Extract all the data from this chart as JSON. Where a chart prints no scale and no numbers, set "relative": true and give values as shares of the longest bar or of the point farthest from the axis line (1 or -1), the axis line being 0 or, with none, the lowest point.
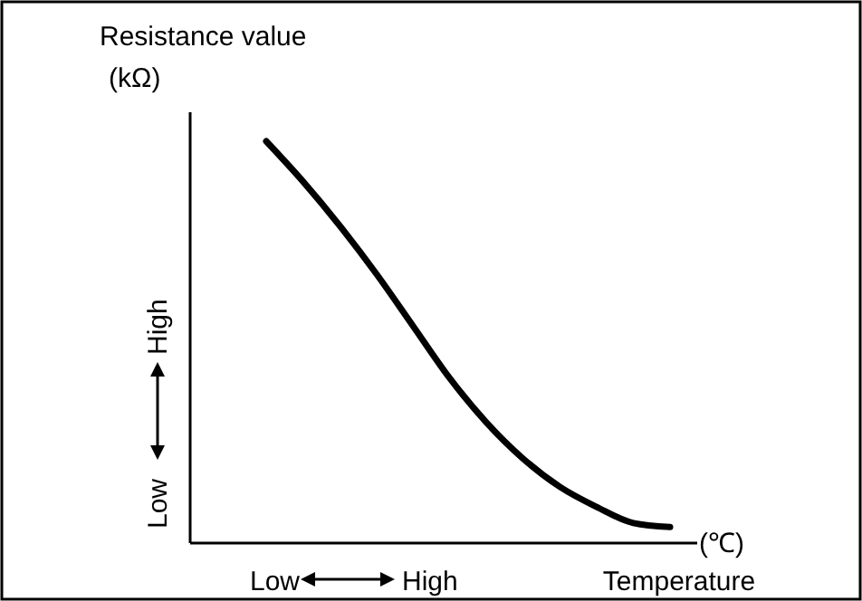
{
  "chart_data": {
    "type": "line",
    "relative": true,
    "ylabel": "Resistance value (kΩ)",
    "xlabel": "Temperature",
    "annotations": [
      "(℃)",
      "Low",
      "High",
      "Low",
      "High"
    ],
    "categories": [
      null,
      null,
      null,
      null,
      null,
      null,
      null,
      null,
      null,
      null,
      null,
      null
    ],
    "series": [
      {
        "color": "#000000",
        "values": [
          1,
          0.9,
          0.79,
          0.67,
          0.54,
          0.41,
          0.3,
          0.21,
          0.14,
          0.09,
          0.05,
          0.04
        ]
      }
    ],
    "marker": "none",
    "line_style": "solid"
  }
}
